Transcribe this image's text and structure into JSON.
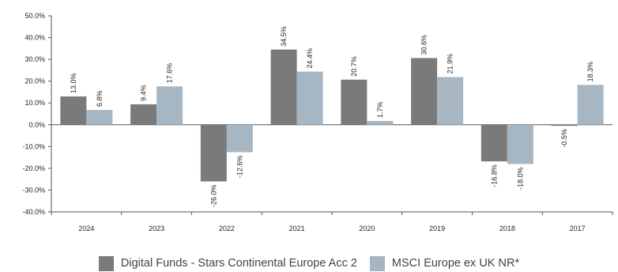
{
  "chart_data": {
    "type": "bar",
    "categories": [
      "2024",
      "2023",
      "2022",
      "2021",
      "2020",
      "2019",
      "2018",
      "2017"
    ],
    "series": [
      {
        "name": "Digital Funds - Stars Continental Europe Acc 2",
        "color": "#7a7a7a",
        "values": [
          13.0,
          9.4,
          -26.0,
          34.5,
          20.7,
          30.6,
          -16.8,
          -0.5
        ],
        "labels": [
          "13.0%",
          "9.4%",
          "-26.0%",
          "34.5%",
          "20.7%",
          "30.6%",
          "-16.8%",
          "-0.5%"
        ]
      },
      {
        "name": "MSCI Europe ex UK NR*",
        "color": "#a7b6c3",
        "values": [
          6.8,
          17.6,
          -12.6,
          24.4,
          1.7,
          21.9,
          -18.0,
          18.3
        ],
        "labels": [
          "6.8%",
          "17.6%",
          "-12.6%",
          "24.4%",
          "1.7%",
          "21.9%",
          "-18.0%",
          "18.3%"
        ]
      }
    ],
    "ylim": [
      -40,
      50
    ],
    "yticks": [
      50,
      40,
      30,
      20,
      10,
      0,
      -10,
      -20,
      -30,
      -40
    ],
    "ytick_labels": [
      "50.0%",
      "40.0%",
      "30.0%",
      "20.0%",
      "10.0%",
      "0.0%",
      "-10.0%",
      "-20.0%",
      "-30.0%",
      "-40.0%"
    ],
    "grid": false,
    "legend_position": "bottom",
    "title": "",
    "xlabel": "",
    "ylabel": ""
  },
  "legend": [
    {
      "label": "Digital Funds - Stars Continental Europe Acc 2",
      "color": "#7a7a7a"
    },
    {
      "label": "MSCI Europe ex UK NR*",
      "color": "#a7b6c3"
    }
  ]
}
